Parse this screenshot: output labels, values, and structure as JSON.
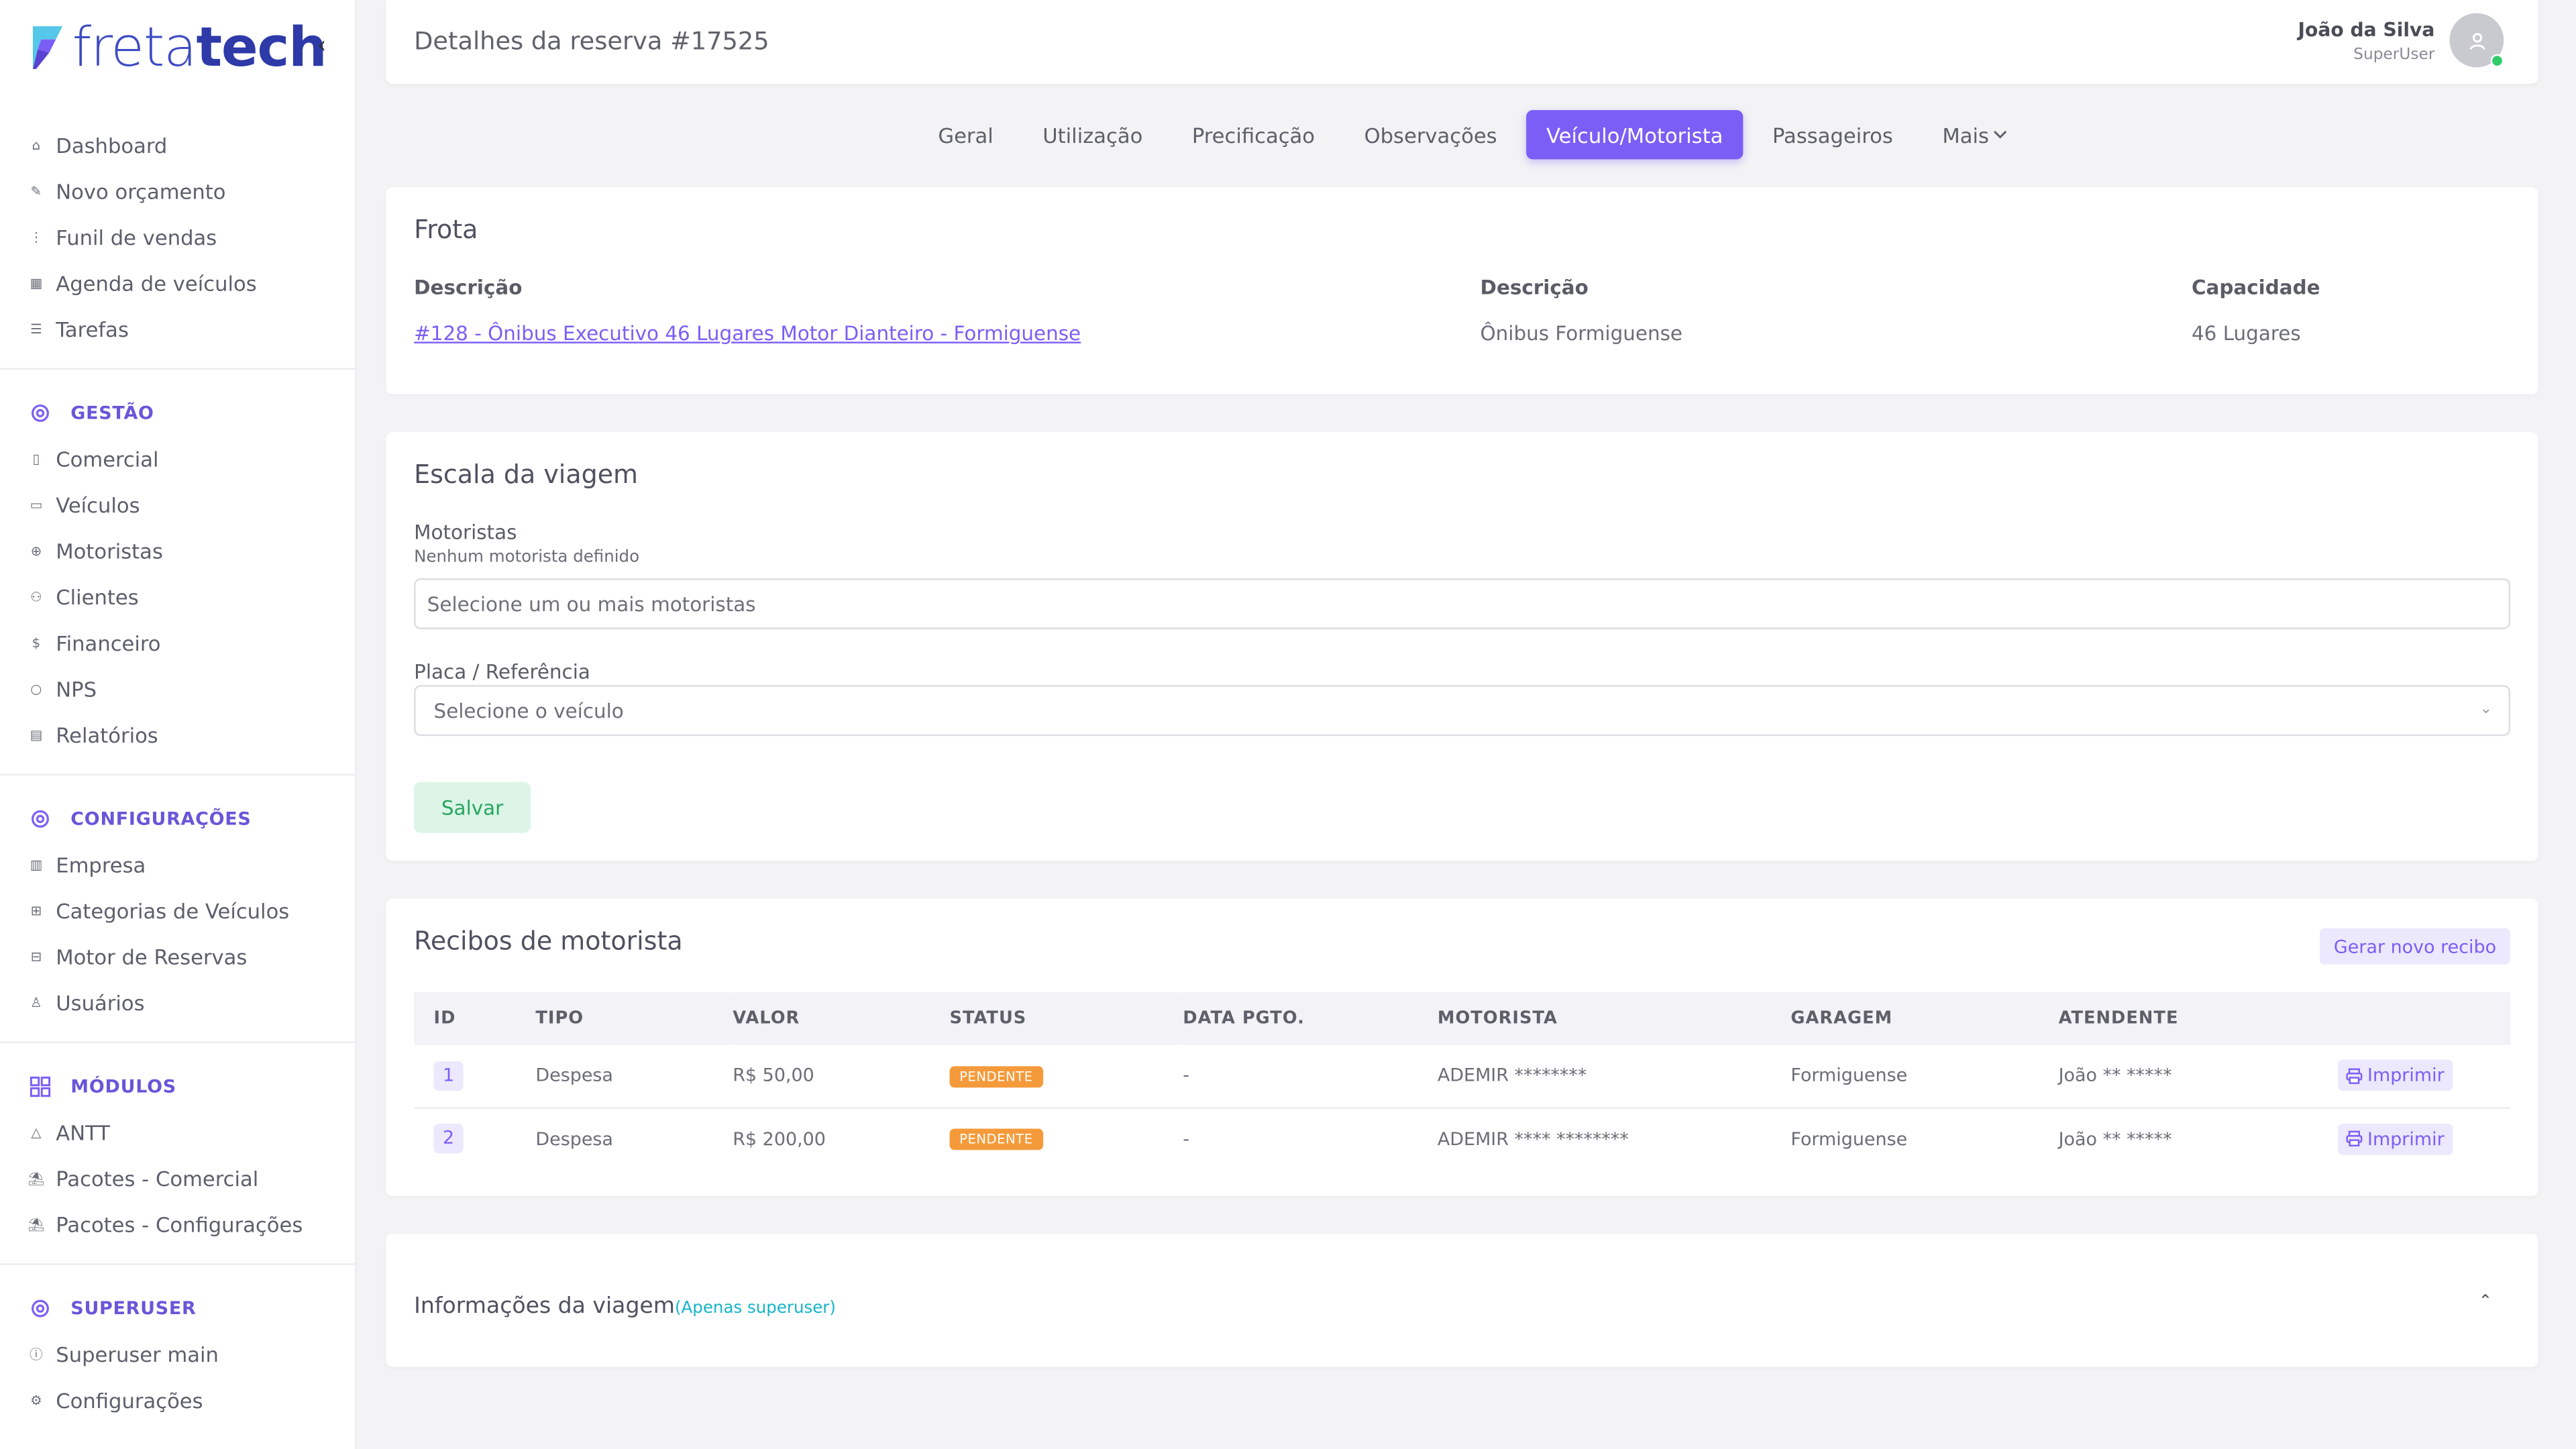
{
  "brand": {
    "name_light": "freta",
    "name_bold": "tech"
  },
  "sidebar": {
    "main_items": [
      {
        "label": "Dashboard",
        "icon": "home-icon"
      },
      {
        "label": "Novo orçamento",
        "icon": "edit-icon"
      },
      {
        "label": "Funil de vendas",
        "icon": "funnel-icon"
      },
      {
        "label": "Agenda de veículos",
        "icon": "calendar-icon"
      },
      {
        "label": "Tarefas",
        "icon": "list-icon"
      }
    ],
    "sections": [
      {
        "title": "GESTÃO",
        "items": [
          {
            "label": "Comercial",
            "icon": "document-icon"
          },
          {
            "label": "Veículos",
            "icon": "bus-icon"
          },
          {
            "label": "Motoristas",
            "icon": "steering-wheel-icon"
          },
          {
            "label": "Clientes",
            "icon": "users-icon"
          },
          {
            "label": "Financeiro",
            "icon": "dollar-icon"
          },
          {
            "label": "NPS",
            "icon": "chat-icon"
          },
          {
            "label": "Relatórios",
            "icon": "report-icon"
          }
        ]
      },
      {
        "title": "CONFIGURAÇÕES",
        "items": [
          {
            "label": "Empresa",
            "icon": "building-icon"
          },
          {
            "label": "Categorias de Veículos",
            "icon": "grid-icon"
          },
          {
            "label": "Motor de Reservas",
            "icon": "table-icon"
          },
          {
            "label": "Usuários",
            "icon": "user-icon"
          }
        ]
      },
      {
        "title": "MÓDULOS",
        "items": [
          {
            "label": "ANTT",
            "icon": "triangle-icon"
          },
          {
            "label": "Pacotes - Comercial",
            "icon": "beach-icon"
          },
          {
            "label": "Pacotes - Configurações",
            "icon": "beach-icon"
          }
        ]
      },
      {
        "title": "SUPERUSER",
        "items": [
          {
            "label": "Superuser main",
            "icon": "info-icon"
          },
          {
            "label": "Configurações",
            "icon": "gear-icon"
          }
        ]
      }
    ]
  },
  "header": {
    "title": "Detalhes da reserva #17525",
    "user_name": "João da Silva",
    "user_role": "SuperUser"
  },
  "tabs": [
    {
      "label": "Geral",
      "active": false
    },
    {
      "label": "Utilização",
      "active": false
    },
    {
      "label": "Precificação",
      "active": false
    },
    {
      "label": "Observações",
      "active": false
    },
    {
      "label": "Veículo/Motorista",
      "active": true
    },
    {
      "label": "Passageiros",
      "active": false
    },
    {
      "label": "Mais",
      "active": false
    }
  ],
  "frota": {
    "title": "Frota",
    "col1_label": "Descrição",
    "col1_value": "#128 - Ônibus Executivo 46 Lugares Motor Dianteiro - Formiguense",
    "col2_label": "Descrição",
    "col2_value": "Ônibus Formiguense",
    "col3_label": "Capacidade",
    "col3_value": "46 Lugares"
  },
  "escala": {
    "title": "Escala da viagem",
    "motoristas_label": "Motoristas",
    "motoristas_hint": "Nenhum motorista definido",
    "motoristas_placeholder": "Selecione um ou mais motoristas",
    "placa_label": "Placa / Referência",
    "placa_placeholder": "Selecione o veículo",
    "save_label": "Salvar"
  },
  "recibos": {
    "title": "Recibos de motorista",
    "new_button": "Gerar novo recibo",
    "columns": [
      "ID",
      "TIPO",
      "VALOR",
      "STATUS",
      "DATA PGTO.",
      "MOTORISTA",
      "GARAGEM",
      "ATENDENTE"
    ],
    "rows": [
      {
        "id": "1",
        "tipo": "Despesa",
        "valor": "R$ 50,00",
        "status": "PENDENTE",
        "data": "-",
        "motorista": "ADEMIR ********",
        "garagem": "Formiguense",
        "atendente": "João ** *****",
        "print": "Imprimir"
      },
      {
        "id": "2",
        "tipo": "Despesa",
        "valor": "R$ 200,00",
        "status": "PENDENTE",
        "data": "-",
        "motorista": "ADEMIR **** ********",
        "garagem": "Formiguense",
        "atendente": "João ** *****",
        "print": "Imprimir"
      }
    ]
  },
  "info": {
    "title": "Informações da viagem",
    "subtitle": "(Apenas superuser)"
  },
  "colors": {
    "accent": "#7b5ef5",
    "success_bg": "#dcf5e7",
    "success_text": "#28a660",
    "pending": "#f59a3a",
    "online": "#2fca6a"
  }
}
